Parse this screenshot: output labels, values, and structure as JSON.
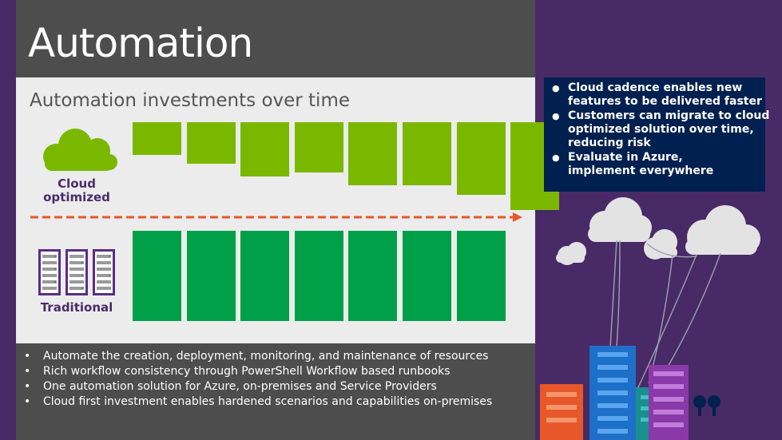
{
  "slide": {
    "title": "Automation",
    "diagram": {
      "title": "Automation investments over time",
      "cloud_label_line1": "Cloud",
      "cloud_label_line2": "optimized",
      "traditional_label": "Traditional",
      "cloud_bar_heights": [
        0.37,
        0.47,
        0.62,
        0.57,
        0.72,
        0.72,
        0.83,
        1.0
      ],
      "traditional_bar_count": 7,
      "arrow_color": "#e8572a",
      "cloud_bar_color": "#7ab800",
      "traditional_bar_color": "#00a048"
    },
    "bullets": [
      "Automate the creation, deployment, monitoring, and maintenance of resources",
      "Rich workflow consistency through PowerShell Workflow based runbooks",
      "One automation solution for Azure, on-premises and Service Providers",
      "Cloud first investment enables hardened scenarios and capabilities on-premises"
    ],
    "info_box": [
      {
        "line1": "Cloud cadence enables new",
        "line2": "features to be delivered faster"
      },
      {
        "line1": "Customers can migrate to cloud",
        "line2": "optimized solution over time,",
        "line3": "reducing risk"
      },
      {
        "line1": "Evaluate in Azure,",
        "line2": "implement everywhere"
      }
    ],
    "icons": [
      "cloud-icon",
      "server-rack-icon",
      "city-clouds-illustration"
    ]
  }
}
